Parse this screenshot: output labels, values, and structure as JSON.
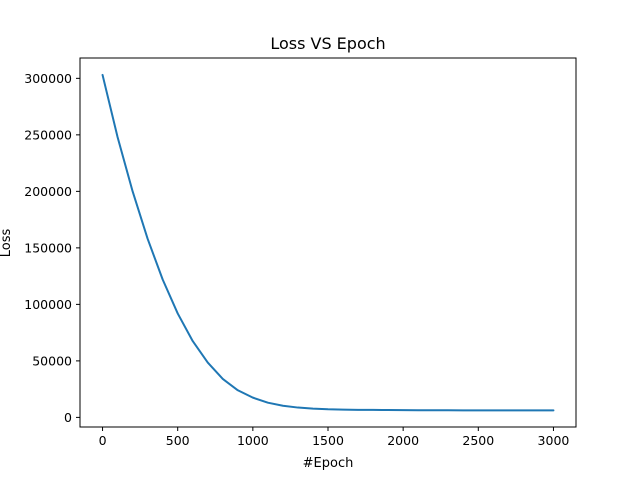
{
  "chart_data": {
    "type": "line",
    "title": "Loss VS Epoch",
    "xlabel": "#Epoch",
    "ylabel": "Loss",
    "xlim": [
      -150,
      3150
    ],
    "ylim": [
      -8500,
      318000
    ],
    "xticks": [
      0,
      500,
      1000,
      1500,
      2000,
      2500,
      3000
    ],
    "yticks": [
      0,
      50000,
      100000,
      150000,
      200000,
      250000,
      300000
    ],
    "grid": false,
    "series": [
      {
        "color": "#1f77b4",
        "x": [
          0,
          100,
          200,
          300,
          400,
          500,
          600,
          700,
          800,
          900,
          1000,
          1100,
          1200,
          1300,
          1400,
          1500,
          1600,
          1700,
          1800,
          1900,
          2000,
          2100,
          2200,
          2300,
          2400,
          2500,
          2600,
          2700,
          2800,
          2900,
          3000
        ],
        "y": [
          303000,
          248000,
          200000,
          158000,
          122000,
          92000,
          67500,
          48500,
          34000,
          24000,
          17500,
          13000,
          10300,
          8700,
          7800,
          7200,
          6900,
          6700,
          6600,
          6500,
          6400,
          6350,
          6300,
          6300,
          6250,
          6250,
          6200,
          6200,
          6200,
          6200,
          6200
        ]
      }
    ]
  }
}
